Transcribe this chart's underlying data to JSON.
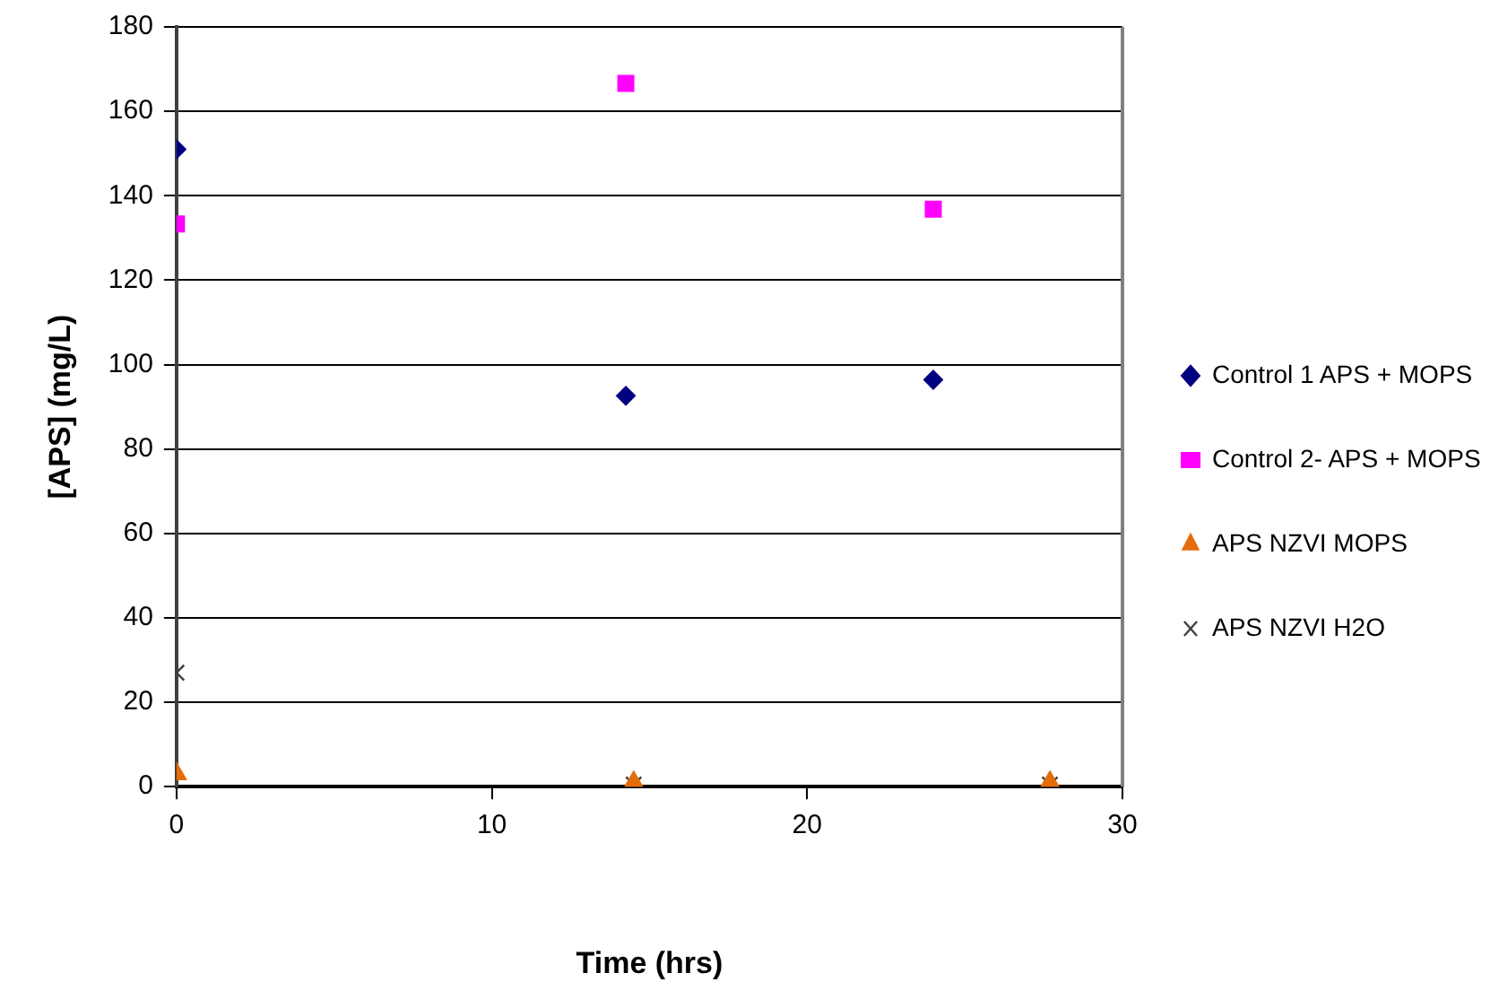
{
  "chart_data": {
    "type": "scatter",
    "xlabel": "Time (hrs)",
    "ylabel": "[APS] (mg/L)",
    "xlim": [
      0,
      30
    ],
    "xticks": [
      0,
      10,
      20,
      30
    ],
    "ylim": [
      0,
      180
    ],
    "yticks": [
      0,
      20,
      40,
      60,
      80,
      100,
      120,
      140,
      160,
      180
    ],
    "grid": "y",
    "legend": "right",
    "series": [
      {
        "name": "Control 1 APS + MOPS",
        "color": "#000080",
        "marker": "diamond",
        "x": [
          0,
          14.25,
          24
        ],
        "values": [
          151,
          92.6,
          96.4
        ]
      },
      {
        "name": "Control 2- APS + MOPS",
        "color": "#ff00ff",
        "marker": "square",
        "x": [
          0,
          14.25,
          24
        ],
        "values": [
          133.3,
          166.6,
          136.8
        ]
      },
      {
        "name": "APS NZVI MOPS",
        "color": "#e46c0a",
        "marker": "triangle",
        "x": [
          0,
          14.5,
          27.7
        ],
        "values": [
          3,
          1,
          1
        ]
      },
      {
        "name": "APS NZVI H2O",
        "color": "#404040",
        "marker": "cross",
        "x": [
          0,
          14.5,
          27.7
        ],
        "values": [
          27,
          0.5,
          0.5
        ]
      }
    ]
  }
}
